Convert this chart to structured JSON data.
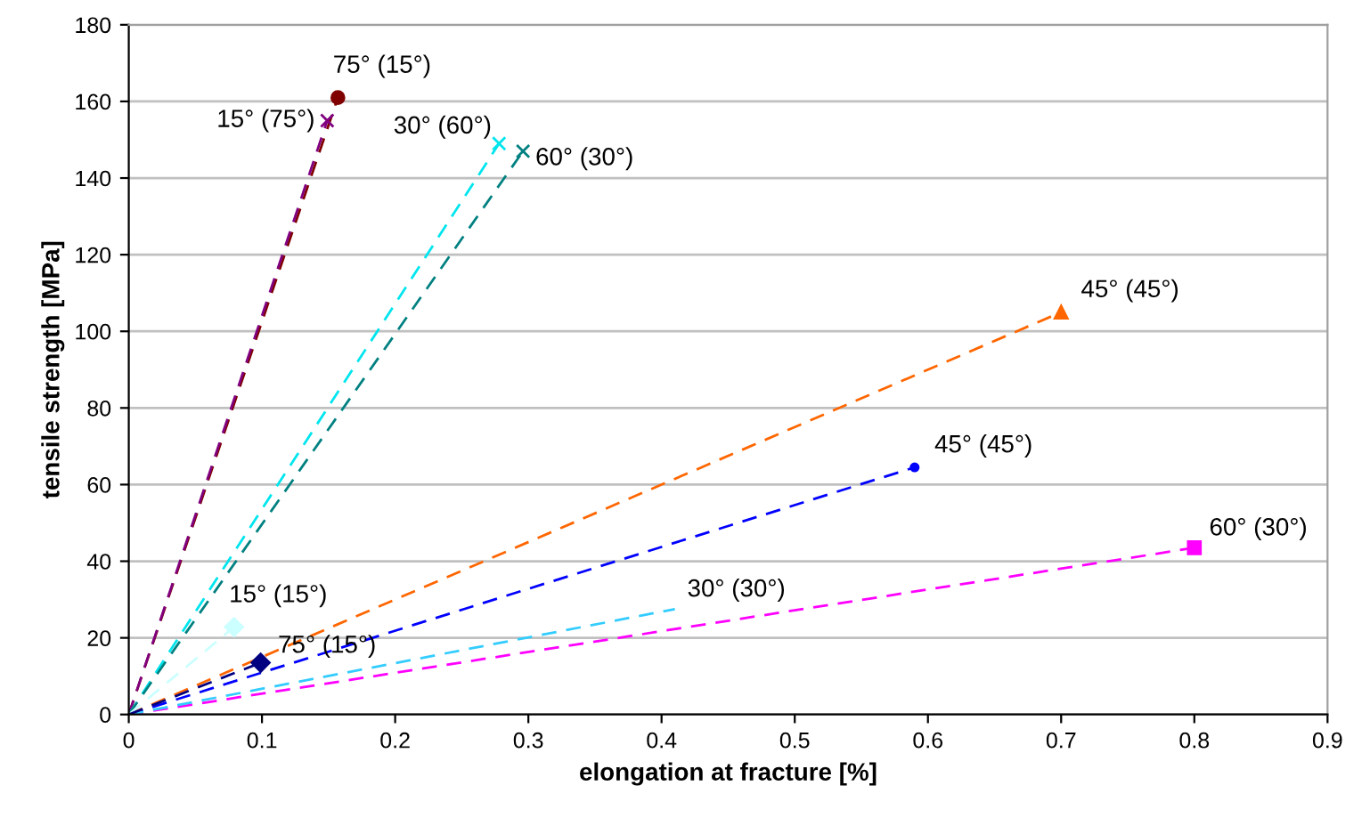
{
  "chart_data": {
    "type": "line",
    "xlabel": "elongation at fracture [%]",
    "ylabel": "tensile strength [MPa]",
    "xlim": [
      0,
      0.9
    ],
    "xticks": [
      0,
      0.1,
      0.2,
      0.3,
      0.4,
      0.5,
      0.6,
      0.7,
      0.8,
      0.9
    ],
    "ylim": [
      0,
      180
    ],
    "yticks": [
      0,
      20,
      40,
      60,
      80,
      100,
      120,
      140,
      160,
      180
    ],
    "grid": "y",
    "legend": false,
    "line_style": "dashed",
    "series": [
      {
        "name": "75° (15°)",
        "color": "#800000",
        "marker": "circle",
        "x": [
          0,
          0.157
        ],
        "values": [
          0,
          161
        ]
      },
      {
        "name": "15° (75°)",
        "color": "#800080",
        "marker": "cross",
        "x": [
          0,
          0.149
        ],
        "values": [
          0,
          155
        ]
      },
      {
        "name": "30° (60°)",
        "color": "#00e5ee",
        "marker": "cross",
        "x": [
          0,
          0.278
        ],
        "values": [
          0,
          149
        ]
      },
      {
        "name": "60° (30°)",
        "color": "#008080",
        "marker": "cross",
        "x": [
          0,
          0.296
        ],
        "values": [
          0,
          147
        ]
      },
      {
        "name": "45° (45°)",
        "color": "#ff6600",
        "marker": "triangle",
        "x": [
          0,
          0.7
        ],
        "values": [
          0,
          105
        ]
      },
      {
        "name": "45° (45°)",
        "color": "#0000ff",
        "marker": "circle",
        "x": [
          0,
          0.59
        ],
        "values": [
          0,
          64.5
        ]
      },
      {
        "name": "60° (30°)",
        "color": "#ff00ff",
        "marker": "square",
        "x": [
          0,
          0.8
        ],
        "values": [
          0,
          43.5
        ]
      },
      {
        "name": "30° (30°)",
        "color": "#33ccff",
        "marker": "none",
        "x": [
          0,
          0.41
        ],
        "values": [
          0,
          27.5
        ]
      },
      {
        "name": "15° (15°)",
        "color": "#ccffff",
        "marker": "diamond",
        "x": [
          0,
          0.079
        ],
        "values": [
          0,
          22.8
        ]
      },
      {
        "name": "75° (15°)",
        "color": "#000080",
        "marker": "diamond",
        "x": [
          0,
          0.099
        ],
        "values": [
          0,
          13.5
        ]
      }
    ]
  }
}
